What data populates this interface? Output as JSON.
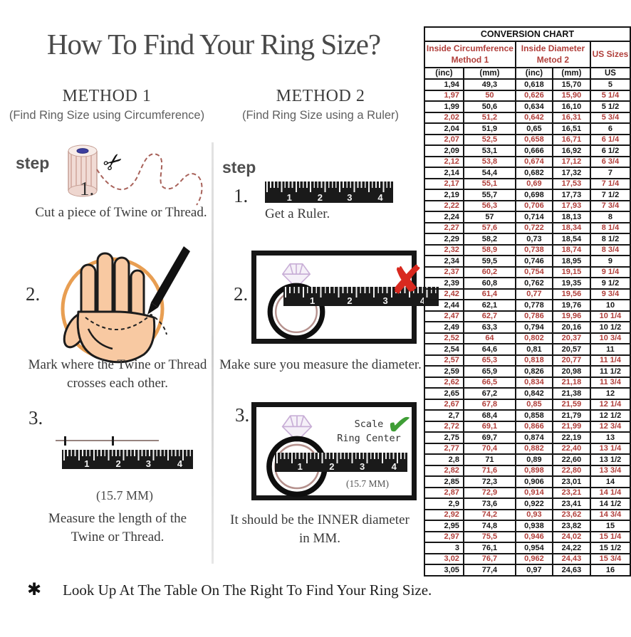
{
  "title": "How To Find Your Ring Size?",
  "colors": {
    "accent_red": "#b03e3a",
    "x_red": "#d8291f",
    "check_green": "#3f9e36",
    "hand_circle_orange": "#e6933f",
    "ruler_black": "#1a1a1a"
  },
  "icons": {
    "scissors": "✂",
    "cross": "✘",
    "check": "✔",
    "asterisk": "✱"
  },
  "ruler": {
    "numbers": [
      "1",
      "2",
      "3",
      "4"
    ]
  },
  "method1": {
    "heading": "METHOD 1",
    "subheading": "(Find Ring Size using Circumference)",
    "step_word": "step",
    "steps": [
      {
        "num": "1.",
        "caption": "Cut a piece of  Twine or Thread."
      },
      {
        "num": "2.",
        "caption": "Mark where the Twine or Thread\ncrosses each other."
      },
      {
        "num": "3.",
        "caption": "Measure the length of the\nTwine or Thread.",
        "note": "(15.7 MM)"
      }
    ]
  },
  "method2": {
    "heading": "METHOD 2",
    "subheading": "(Find Ring Size using a Ruler)",
    "step_word": "step",
    "steps": [
      {
        "num": "1.",
        "caption": "Get a Ruler."
      },
      {
        "num": "2.",
        "caption": "Make sure you measure the diameter."
      },
      {
        "num": "3.",
        "caption": "It should be the INNER diameter\nin MM.",
        "scale_label": "Scale\nRing Center",
        "note": "(15.7 MM)"
      }
    ]
  },
  "footer": {
    "text": "Look Up At The Table On The Right To Find Your Ring Size."
  },
  "table": {
    "title": "CONVERSION CHART",
    "group_headers": [
      "Inside Circumference\nMethod 1",
      "Inside Diameter\nMetod 2",
      "US Sizes"
    ],
    "sub_headers": [
      "(inc)",
      "(mm)",
      "(inc)",
      "(mm)",
      "US"
    ],
    "rows": [
      [
        "1,94",
        "49,3",
        "0,618",
        "15,70",
        "5"
      ],
      [
        "1,97",
        "50",
        "0,626",
        "15,90",
        "5 1/4"
      ],
      [
        "1,99",
        "50,6",
        "0,634",
        "16,10",
        "5 1/2"
      ],
      [
        "2,02",
        "51,2",
        "0,642",
        "16,31",
        "5 3/4"
      ],
      [
        "2,04",
        "51,9",
        "0,65",
        "16,51",
        "6"
      ],
      [
        "2,07",
        "52,5",
        "0,658",
        "16,71",
        "6 1/4"
      ],
      [
        "2,09",
        "53,1",
        "0,666",
        "16,92",
        "6 1/2"
      ],
      [
        "2,12",
        "53,8",
        "0,674",
        "17,12",
        "6 3/4"
      ],
      [
        "2,14",
        "54,4",
        "0,682",
        "17,32",
        "7"
      ],
      [
        "2,17",
        "55,1",
        "0,69",
        "17,53",
        "7 1/4"
      ],
      [
        "2,19",
        "55,7",
        "0,698",
        "17,73",
        "7 1/2"
      ],
      [
        "2,22",
        "56,3",
        "0,706",
        "17,93",
        "7 3/4"
      ],
      [
        "2,24",
        "57",
        "0,714",
        "18,13",
        "8"
      ],
      [
        "2,27",
        "57,6",
        "0,722",
        "18,34",
        "8 1/4"
      ],
      [
        "2,29",
        "58,2",
        "0,73",
        "18,54",
        "8 1/2"
      ],
      [
        "2,32",
        "58,9",
        "0,738",
        "18,74",
        "8 3/4"
      ],
      [
        "2,34",
        "59,5",
        "0,746",
        "18,95",
        "9"
      ],
      [
        "2,37",
        "60,2",
        "0,754",
        "19,15",
        "9 1/4"
      ],
      [
        "2,39",
        "60,8",
        "0,762",
        "19,35",
        "9 1/2"
      ],
      [
        "2,42",
        "61,4",
        "0,77",
        "19,56",
        "9 3/4"
      ],
      [
        "2,44",
        "62,1",
        "0,778",
        "19,76",
        "10"
      ],
      [
        "2,47",
        "62,7",
        "0,786",
        "19,96",
        "10 1/4"
      ],
      [
        "2,49",
        "63,3",
        "0,794",
        "20,16",
        "10 1/2"
      ],
      [
        "2,52",
        "64",
        "0,802",
        "20,37",
        "10 3/4"
      ],
      [
        "2,54",
        "64,6",
        "0,81",
        "20,57",
        "11"
      ],
      [
        "2,57",
        "65,3",
        "0,818",
        "20,77",
        "11 1/4"
      ],
      [
        "2,59",
        "65,9",
        "0,826",
        "20,98",
        "11 1/2"
      ],
      [
        "2,62",
        "66,5",
        "0,834",
        "21,18",
        "11 3/4"
      ],
      [
        "2,65",
        "67,2",
        "0,842",
        "21,38",
        "12"
      ],
      [
        "2,67",
        "67,8",
        "0,85",
        "21,59",
        "12 1/4"
      ],
      [
        "2,7",
        "68,4",
        "0,858",
        "21,79",
        "12 1/2"
      ],
      [
        "2,72",
        "69,1",
        "0,866",
        "21,99",
        "12 3/4"
      ],
      [
        "2,75",
        "69,7",
        "0,874",
        "22,19",
        "13"
      ],
      [
        "2,77",
        "70,4",
        "0,882",
        "22,40",
        "13 1/4"
      ],
      [
        "2,8",
        "71",
        "0,89",
        "22,60",
        "13 1/2"
      ],
      [
        "2,82",
        "71,6",
        "0,898",
        "22,80",
        "13 3/4"
      ],
      [
        "2,85",
        "72,3",
        "0,906",
        "23,01",
        "14"
      ],
      [
        "2,87",
        "72,9",
        "0,914",
        "23,21",
        "14 1/4"
      ],
      [
        "2,9",
        "73,6",
        "0,922",
        "23,41",
        "14 1/2"
      ],
      [
        "2,92",
        "74,2",
        "0,93",
        "23,62",
        "14 3/4"
      ],
      [
        "2,95",
        "74,8",
        "0,938",
        "23,82",
        "15"
      ],
      [
        "2,97",
        "75,5",
        "0,946",
        "24,02",
        "15 1/4"
      ],
      [
        "3",
        "76,1",
        "0,954",
        "24,22",
        "15 1/2"
      ],
      [
        "3,02",
        "76,7",
        "0,962",
        "24,43",
        "15 3/4"
      ],
      [
        "3,05",
        "77,4",
        "0,97",
        "24,63",
        "16"
      ]
    ]
  }
}
